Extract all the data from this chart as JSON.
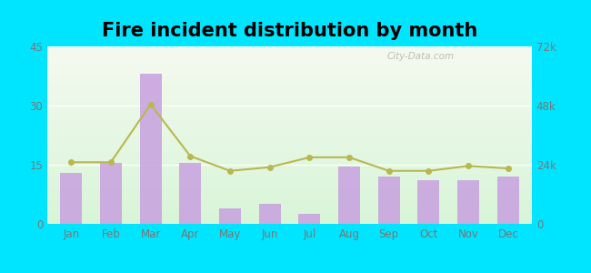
{
  "title": "Fire incident distribution by month",
  "months": [
    "Jan",
    "Feb",
    "Mar",
    "Apr",
    "May",
    "Jun",
    "Jul",
    "Aug",
    "Sep",
    "Oct",
    "Nov",
    "Dec"
  ],
  "bar_values": [
    13,
    15.5,
    38,
    15.5,
    4,
    5,
    2.5,
    14.5,
    12,
    11,
    11,
    12
  ],
  "line_values": [
    25000,
    25000,
    48500,
    27500,
    21500,
    23000,
    27000,
    27000,
    21500,
    21500,
    23500,
    22500
  ],
  "bar_color": "#c8a0e0",
  "line_color": "#b8b850",
  "background_top": "#f5faf0",
  "background_bottom": "#d8f5d8",
  "outer_background": "#00e5ff",
  "ylim_left": [
    0,
    45
  ],
  "ylim_right": [
    0,
    72000
  ],
  "left_yticks": [
    0,
    15,
    30,
    45
  ],
  "right_yticks": [
    0,
    24000,
    48000,
    72000
  ],
  "right_yticklabels": [
    "0",
    "24k",
    "48k",
    "72k"
  ],
  "title_fontsize": 15,
  "watermark_text": "City-Data.com"
}
